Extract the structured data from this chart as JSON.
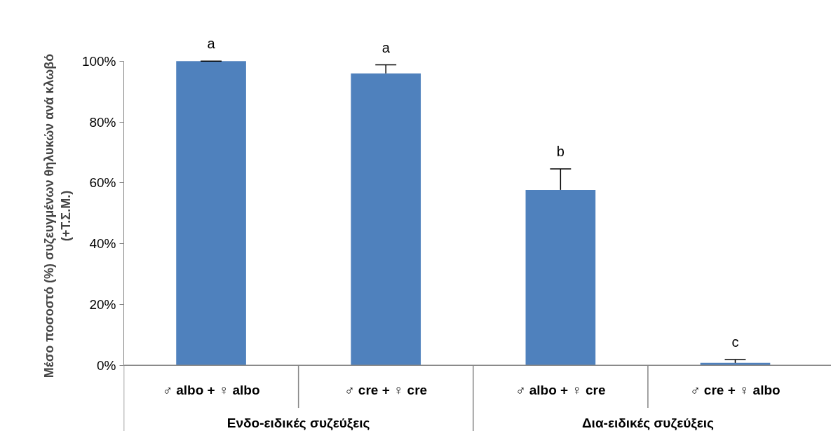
{
  "chart_data": {
    "type": "bar",
    "ylabel": "Μέσο ποσοστό (%) συζευγμένων θηλυκών ανά κλωβό\n(+Τ.Σ.Μ.)",
    "categories": [
      "♂ albo + ♀ albo",
      "♂ cre + ♀ cre",
      "♂ albo + ♀ cre",
      "♂ cre + ♀ albo"
    ],
    "values": [
      100,
      96.0,
      57.7,
      0.8
    ],
    "errors": [
      [
        100,
        100
      ],
      [
        96.0,
        98.8
      ],
      [
        57.7,
        64.6
      ],
      [
        0.8,
        1.9
      ]
    ],
    "color": "#4f81bd",
    "ylim": [
      0,
      100
    ],
    "yticks": [
      {
        "value": 0,
        "label": "0%"
      },
      {
        "value": 20,
        "label": "20%"
      },
      {
        "value": 40,
        "label": "40%"
      },
      {
        "value": 60,
        "label": "60%"
      },
      {
        "value": 80,
        "label": "80%"
      },
      {
        "value": 100,
        "label": "100%"
      }
    ],
    "grid": false,
    "annotations": [
      {
        "text": "a",
        "x": "♂ albo + ♀ albo",
        "y": 100
      },
      {
        "text": "a",
        "x": "♂ cre + ♀ cre",
        "y": 98.8
      },
      {
        "text": "b",
        "x": "♂ albo + ♀ cre",
        "y": 64.6
      },
      {
        "text": "c",
        "x": "♂ cre + ♀ albo",
        "y": 1.9
      },
      "Ενδο-ειδικές συζεύξεις",
      "Δια-ειδικές συζεύξεις"
    ]
  }
}
